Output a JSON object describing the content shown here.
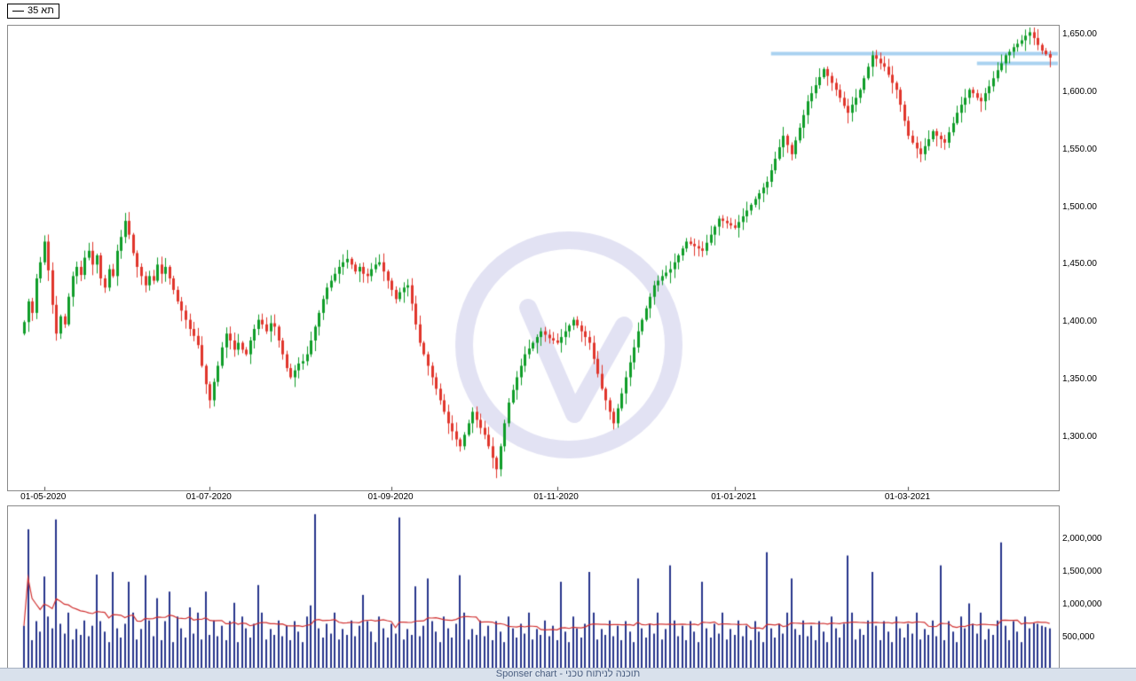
{
  "legend": {
    "label": "תא 35"
  },
  "footer": {
    "text": "Sponser chart - תוכנה לניתוח טכני"
  },
  "chart_data": {
    "type": "candlestick",
    "series_name": "תא 35",
    "price_axis_range": [
      1255,
      1658
    ],
    "price_ticks": [
      {
        "label": "1,650.00",
        "value": 1650
      },
      {
        "label": "1,600.00",
        "value": 1600
      },
      {
        "label": "1,550.00",
        "value": 1550
      },
      {
        "label": "1,500.00",
        "value": 1500
      },
      {
        "label": "1,450.00",
        "value": 1450
      },
      {
        "label": "1,400.00",
        "value": 1400
      },
      {
        "label": "1,350.00",
        "value": 1350
      },
      {
        "label": "1,300.00",
        "value": 1300
      }
    ],
    "date_ticks": [
      {
        "label": "01-05-2020",
        "index": 5
      },
      {
        "label": "01-07-2020",
        "index": 46
      },
      {
        "label": "01-09-2020",
        "index": 91
      },
      {
        "label": "01-11-2020",
        "index": 132
      },
      {
        "label": "01-01-2021",
        "index": 176
      },
      {
        "label": "01-03-2021",
        "index": 219
      }
    ],
    "volume_ticks": [
      {
        "label": "2,000,000",
        "value_thousands": 2000
      },
      {
        "label": "1,500,000",
        "value_thousands": 1500
      },
      {
        "label": "1,000,000",
        "value_thousands": 1000
      },
      {
        "label": "500,000",
        "value_thousands": 500
      }
    ],
    "closes": [
      1400,
      1418,
      1408,
      1438,
      1452,
      1470,
      1445,
      1415,
      1390,
      1405,
      1398,
      1422,
      1440,
      1448,
      1441,
      1456,
      1462,
      1450,
      1458,
      1438,
      1430,
      1446,
      1440,
      1462,
      1474,
      1488,
      1476,
      1460,
      1448,
      1440,
      1432,
      1440,
      1436,
      1450,
      1442,
      1448,
      1438,
      1428,
      1418,
      1410,
      1402,
      1394,
      1388,
      1380,
      1362,
      1346,
      1332,
      1348,
      1362,
      1378,
      1390,
      1384,
      1376,
      1382,
      1376,
      1372,
      1384,
      1394,
      1402,
      1398,
      1392,
      1399,
      1396,
      1384,
      1372,
      1360,
      1352,
      1358,
      1364,
      1366,
      1372,
      1384,
      1396,
      1408,
      1420,
      1430,
      1436,
      1442,
      1448,
      1452,
      1455,
      1450,
      1444,
      1448,
      1442,
      1440,
      1446,
      1450,
      1452,
      1444,
      1436,
      1428,
      1420,
      1426,
      1430,
      1432,
      1416,
      1398,
      1382,
      1372,
      1362,
      1352,
      1342,
      1332,
      1322,
      1312,
      1305,
      1298,
      1292,
      1302,
      1312,
      1322,
      1315,
      1308,
      1302,
      1292,
      1282,
      1272,
      1292,
      1312,
      1330,
      1341,
      1352,
      1362,
      1372,
      1377,
      1382,
      1387,
      1392,
      1389,
      1386,
      1384,
      1382,
      1387,
      1392,
      1397,
      1402,
      1397,
      1392,
      1387,
      1382,
      1368,
      1355,
      1342,
      1332,
      1322,
      1312,
      1325,
      1338,
      1352,
      1365,
      1378,
      1392,
      1402,
      1412,
      1422,
      1432,
      1436,
      1440,
      1443,
      1446,
      1452,
      1458,
      1464,
      1470,
      1468,
      1466,
      1464,
      1462,
      1469,
      1476,
      1483,
      1490,
      1488,
      1486,
      1484,
      1482,
      1487,
      1492,
      1497,
      1502,
      1507,
      1512,
      1517,
      1522,
      1532,
      1542,
      1552,
      1562,
      1554,
      1546,
      1558,
      1569,
      1580,
      1592,
      1599,
      1606,
      1613,
      1620,
      1614,
      1608,
      1602,
      1595,
      1588,
      1582,
      1589,
      1595,
      1602,
      1612,
      1622,
      1632,
      1629,
      1625,
      1622,
      1615,
      1608,
      1602,
      1589,
      1575,
      1562,
      1556,
      1551,
      1546,
      1553,
      1559,
      1566,
      1562,
      1559,
      1556,
      1565,
      1573,
      1582,
      1589,
      1595,
      1602,
      1599,
      1595,
      1592,
      1599,
      1605,
      1612,
      1619,
      1625,
      1632,
      1635,
      1639,
      1642,
      1645,
      1649,
      1652,
      1647,
      1641,
      1636,
      1633,
      1630
    ],
    "volumes_thousands": [
      680,
      2150,
      460,
      750,
      590,
      1430,
      820,
      640,
      2300,
      710,
      560,
      880,
      470,
      630,
      540,
      760,
      520,
      680,
      1460,
      750,
      590,
      430,
      1500,
      640,
      500,
      710,
      1350,
      880,
      470,
      630,
      1450,
      760,
      520,
      1100,
      460,
      750,
      1200,
      430,
      820,
      640,
      500,
      960,
      560,
      880,
      470,
      1200,
      540,
      760,
      520,
      680,
      460,
      750,
      1030,
      430,
      820,
      640,
      500,
      710,
      1300,
      880,
      470,
      630,
      540,
      760,
      520,
      680,
      460,
      750,
      590,
      430,
      820,
      990,
      2380,
      640,
      500,
      710,
      560,
      880,
      470,
      630,
      540,
      760,
      520,
      680,
      1150,
      750,
      590,
      430,
      820,
      640,
      500,
      710,
      560,
      2330,
      470,
      630,
      540,
      1280,
      520,
      680,
      1400,
      750,
      590,
      430,
      820,
      640,
      500,
      710,
      1450,
      880,
      470,
      630,
      540,
      760,
      520,
      680,
      460,
      750,
      590,
      430,
      820,
      640,
      500,
      710,
      560,
      880,
      470,
      630,
      540,
      760,
      520,
      680,
      460,
      1350,
      590,
      430,
      820,
      640,
      500,
      710,
      1500,
      880,
      470,
      630,
      540,
      760,
      520,
      680,
      460,
      750,
      590,
      430,
      1400,
      640,
      500,
      710,
      560,
      880,
      470,
      630,
      1600,
      760,
      520,
      680,
      460,
      750,
      590,
      430,
      1350,
      640,
      500,
      710,
      560,
      880,
      470,
      630,
      540,
      760,
      520,
      680,
      460,
      750,
      590,
      430,
      1800,
      640,
      500,
      710,
      560,
      880,
      1400,
      630,
      540,
      760,
      520,
      680,
      460,
      750,
      590,
      430,
      820,
      640,
      500,
      710,
      1750,
      880,
      470,
      630,
      540,
      760,
      1500,
      680,
      460,
      750,
      590,
      430,
      820,
      640,
      500,
      710,
      560,
      880,
      470,
      630,
      540,
      760,
      520,
      1600,
      460,
      750,
      590,
      430,
      820,
      640,
      1020,
      710,
      560,
      880,
      470,
      630,
      540,
      760,
      1950,
      680,
      460,
      750,
      590,
      430,
      820,
      640,
      720,
      710,
      680,
      660,
      640
    ],
    "volume_ma_period": 20,
    "overlays": {
      "resistance_lines": [
        {
          "price": 1634,
          "from_index": 185,
          "to_index": 254
        },
        {
          "price": 1625,
          "from_index": 236,
          "to_index": 254
        }
      ]
    },
    "colors": {
      "up": "#0f9d28",
      "down": "#e0352b",
      "volume": "#27348b",
      "volume_ma": "#d03030",
      "resistance": "#a9d2f0",
      "watermark": "#e2e2f3"
    }
  }
}
